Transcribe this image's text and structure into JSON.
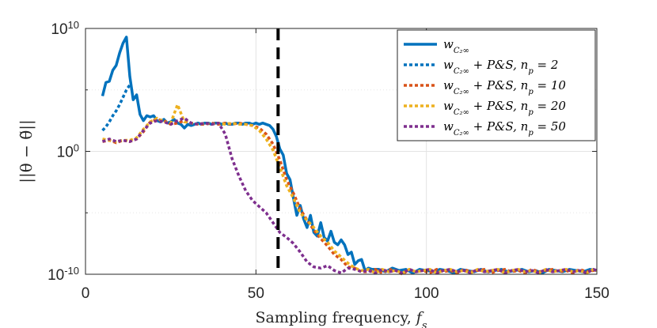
{
  "chart_data": {
    "type": "line",
    "title": "",
    "xlabel": "Sampling frequency, ",
    "xlabel_var": "f",
    "xlabel_sub": "s",
    "ylabel": "||θ − θ̃||",
    "xlim": [
      0,
      150
    ],
    "ylim_exponent": [
      -10,
      10
    ],
    "yscale": "log",
    "grid": true,
    "legend_position": "top-right",
    "x_ticks": [
      {
        "value": 0,
        "label": "0"
      },
      {
        "value": 50,
        "label": "50"
      },
      {
        "value": 100,
        "label": "100"
      },
      {
        "value": 150,
        "label": "150"
      }
    ],
    "y_ticks": [
      {
        "exp": 10,
        "base": "10",
        "sup": "10"
      },
      {
        "exp": 0,
        "base": "10",
        "sup": "0"
      },
      {
        "exp": -10,
        "base": "10",
        "sup": "-10"
      }
    ],
    "minor_y_grid_exp": [
      -5,
      5
    ],
    "vline": {
      "x": 56.5,
      "style": "dashed",
      "color": "#000000"
    },
    "series": [
      {
        "name": "w_{C_2^∞}",
        "legend_label": "w",
        "legend_sub": "C₂∞",
        "legend_suffix": "",
        "color": "#0072BD",
        "dash": "solid",
        "x": [
          5,
          6,
          7,
          8,
          9,
          10,
          11,
          12,
          13,
          14,
          15,
          16,
          17,
          18,
          19,
          20,
          21,
          22,
          23,
          24,
          25,
          26,
          27,
          28,
          29,
          30,
          31,
          32,
          33,
          34,
          35,
          36,
          37,
          38,
          39,
          40,
          41,
          42,
          43,
          44,
          45,
          46,
          47,
          48,
          49,
          50,
          51,
          52,
          53,
          54,
          55,
          56,
          57,
          58,
          59,
          60,
          61,
          62,
          63,
          64,
          65,
          66,
          67,
          68,
          69,
          70,
          71,
          72,
          73,
          74,
          75,
          76,
          77,
          78,
          79,
          80,
          81,
          82,
          83,
          84,
          86,
          88,
          90,
          92,
          94,
          96,
          98,
          100,
          102,
          104,
          106,
          108,
          110,
          112,
          114,
          116,
          118,
          120,
          122,
          124,
          126,
          128,
          130,
          132,
          134,
          136,
          138,
          140,
          142,
          144,
          146,
          148,
          150
        ],
        "y": [
          4.5,
          5.6,
          5.7,
          6.6,
          7.0,
          8.0,
          8.8,
          9.3,
          6.1,
          4.2,
          4.6,
          3.0,
          2.5,
          2.9,
          2.8,
          2.9,
          2.5,
          2.4,
          2.6,
          2.3,
          2.4,
          2.6,
          2.3,
          2.2,
          1.9,
          2.2,
          2.1,
          2.2,
          2.3,
          2.2,
          2.3,
          2.3,
          2.2,
          2.3,
          2.3,
          2.2,
          2.3,
          2.2,
          2.2,
          2.3,
          2.3,
          2.2,
          2.3,
          2.3,
          2.2,
          2.3,
          2.2,
          2.3,
          2.2,
          2.1,
          1.8,
          1.2,
          0.2,
          -0.3,
          -1.8,
          -2.3,
          -3.8,
          -5.2,
          -4.4,
          -5.5,
          -6.2,
          -5.2,
          -6.6,
          -6.9,
          -5.8,
          -7.0,
          -7.3,
          -6.5,
          -7.4,
          -7.6,
          -7.2,
          -7.6,
          -8.4,
          -8.2,
          -9.2,
          -8.9,
          -8.8,
          -9.7,
          -9.5,
          -9.6,
          -9.6,
          -9.8,
          -9.5,
          -9.7,
          -9.6,
          -9.9,
          -9.6,
          -9.7,
          -9.8,
          -9.6,
          -9.7,
          -9.9,
          -9.6,
          -9.7,
          -9.8,
          -9.6,
          -9.8,
          -9.7,
          -9.6,
          -9.8,
          -9.7,
          -9.6,
          -9.8,
          -9.7,
          -9.9,
          -9.6,
          -9.7,
          -9.8,
          -9.6,
          -9.7,
          -9.8,
          -9.6,
          -9.7
        ]
      },
      {
        "name": "w_{C_2^∞} + P&S, n_p = 2",
        "legend_label": "w",
        "legend_sub": "C₂∞",
        "legend_suffix": " + P&S, n",
        "legend_suffix_sub": "p",
        "legend_value": " = 2",
        "color": "#0072BD",
        "dash": "dotted",
        "x": [
          5,
          6,
          7,
          8,
          9,
          10,
          11,
          12,
          13
        ],
        "y": [
          1.7,
          2.0,
          2.4,
          2.9,
          3.3,
          3.8,
          4.4,
          5.0,
          5.4
        ]
      },
      {
        "name": "w_{C_2^∞} + P&S, n_p = 10",
        "legend_label": "w",
        "legend_sub": "C₂∞",
        "legend_suffix": " + P&S, n",
        "legend_suffix_sub": "p",
        "legend_value": " = 10",
        "color": "#D95319",
        "dash": "dotted",
        "x": [
          5,
          7,
          9,
          11,
          13,
          15,
          17,
          19,
          21,
          23,
          25,
          27,
          29,
          31,
          33,
          35,
          37,
          39,
          41,
          43,
          45,
          47,
          49,
          51,
          53,
          55,
          57,
          59,
          61,
          63,
          65,
          67,
          69,
          71,
          73,
          75,
          77,
          79,
          81,
          83,
          85,
          87,
          89,
          91,
          93,
          95,
          97,
          99,
          101,
          103,
          105,
          107,
          109,
          111,
          113,
          115,
          117,
          119,
          121,
          123,
          125,
          127,
          129,
          131,
          133,
          135,
          137,
          139,
          141,
          143,
          145,
          147,
          149,
          150
        ],
        "y": [
          0.8,
          0.9,
          0.7,
          0.9,
          0.8,
          1.0,
          1.6,
          2.4,
          2.6,
          2.5,
          2.2,
          2.3,
          2.5,
          2.3,
          2.2,
          2.2,
          2.3,
          2.2,
          2.3,
          2.2,
          2.3,
          2.2,
          2.1,
          1.9,
          1.4,
          0.6,
          -0.7,
          -2.3,
          -3.4,
          -4.7,
          -5.6,
          -6.4,
          -7.1,
          -7.7,
          -8.4,
          -8.8,
          -9.4,
          -9.5,
          -9.8,
          -9.8,
          -9.6,
          -9.9,
          -9.6,
          -9.7,
          -10.0,
          -9.6,
          -9.8,
          -9.7,
          -9.9,
          -9.6,
          -9.8,
          -9.7,
          -9.9,
          -9.6,
          -9.8,
          -9.7,
          -9.6,
          -9.9,
          -9.7,
          -9.6,
          -9.8,
          -9.7,
          -9.9,
          -9.6,
          -9.8,
          -9.7,
          -9.6,
          -9.8,
          -9.7,
          -9.9,
          -9.6,
          -9.8,
          -9.7,
          -9.6
        ]
      },
      {
        "name": "w_{C_2^∞} + P&S, n_p = 20",
        "legend_label": "w",
        "legend_sub": "C₂∞",
        "legend_suffix": " + P&S, n",
        "legend_suffix_sub": "p",
        "legend_value": " = 20",
        "color": "#EDB120",
        "dash": "dotted",
        "x": [
          5,
          7,
          9,
          11,
          13,
          15,
          17,
          19,
          21,
          23,
          25,
          27,
          29,
          31,
          33,
          35,
          37,
          39,
          41,
          43,
          45,
          47,
          49,
          51,
          53,
          55,
          57,
          59,
          61,
          63,
          65,
          67,
          69,
          71,
          73,
          75,
          77,
          79,
          81,
          83,
          85,
          87,
          89,
          91,
          93,
          95,
          97,
          99,
          101,
          103,
          105,
          107,
          109,
          111,
          113,
          115,
          117,
          119,
          121,
          123,
          125,
          127,
          129,
          131,
          133,
          135,
          137,
          139,
          141,
          143,
          145,
          147,
          149,
          150
        ],
        "y": [
          1.0,
          0.9,
          0.8,
          0.9,
          0.9,
          1.1,
          1.8,
          2.4,
          2.7,
          2.4,
          2.3,
          3.8,
          2.4,
          2.3,
          2.2,
          2.3,
          2.2,
          2.3,
          2.2,
          2.3,
          2.2,
          2.2,
          2.1,
          1.7,
          1.0,
          0.1,
          -1.3,
          -2.8,
          -3.8,
          -5.0,
          -5.6,
          -6.2,
          -6.9,
          -7.4,
          -8.1,
          -8.6,
          -9.1,
          -9.5,
          -9.7,
          -9.6,
          -9.9,
          -9.6,
          -9.8,
          -9.7,
          -9.9,
          -9.6,
          -9.8,
          -9.7,
          -9.6,
          -9.9,
          -9.7,
          -9.6,
          -9.8,
          -9.7,
          -9.9,
          -9.6,
          -9.8,
          -9.7,
          -9.6,
          -9.9,
          -9.7,
          -9.6,
          -9.8,
          -9.7,
          -9.9,
          -9.6,
          -9.8,
          -9.7,
          -9.6,
          -9.8,
          -9.7,
          -9.9,
          -9.6,
          -9.7
        ]
      },
      {
        "name": "w_{C_2^∞} + P&S, n_p = 50",
        "legend_label": "w",
        "legend_sub": "C₂∞",
        "legend_suffix": " + P&S, n",
        "legend_suffix_sub": "p",
        "legend_value": " = 50",
        "color": "#7E2F8E",
        "dash": "dotted",
        "x": [
          5,
          7,
          9,
          11,
          13,
          15,
          17,
          19,
          21,
          23,
          25,
          27,
          29,
          31,
          33,
          35,
          37,
          39,
          41,
          43,
          45,
          47,
          49,
          51,
          53,
          55,
          57,
          59,
          61,
          63,
          65,
          67,
          69,
          71,
          73,
          75,
          77,
          79,
          81,
          83,
          85,
          87,
          89,
          91,
          93,
          95,
          97,
          99,
          101,
          103,
          105,
          107,
          109,
          111,
          113,
          115,
          117,
          119,
          121,
          123,
          125,
          127,
          129,
          131,
          133,
          135,
          137,
          139,
          141,
          143,
          145,
          147,
          149,
          150
        ],
        "y": [
          0.8,
          1.0,
          0.8,
          0.9,
          0.8,
          1.0,
          1.7,
          2.3,
          2.5,
          2.4,
          2.2,
          2.5,
          2.7,
          2.3,
          2.2,
          2.3,
          2.2,
          2.3,
          1.4,
          -0.6,
          -2.0,
          -3.2,
          -4.0,
          -4.5,
          -5.0,
          -5.8,
          -6.6,
          -7.0,
          -7.5,
          -8.2,
          -9.0,
          -9.4,
          -9.5,
          -9.3,
          -9.7,
          -9.9,
          -9.5,
          -9.6,
          -9.8,
          -9.7,
          -9.9,
          -9.6,
          -9.8,
          -9.7,
          -9.9,
          -9.6,
          -9.8,
          -9.7,
          -9.6,
          -9.9,
          -9.7,
          -9.6,
          -9.8,
          -9.7,
          -9.9,
          -9.6,
          -9.8,
          -9.7,
          -9.6,
          -9.9,
          -9.7,
          -9.6,
          -9.8,
          -9.7,
          -9.9,
          -9.6,
          -9.8,
          -9.7,
          -9.6,
          -9.8,
          -9.7,
          -9.9,
          -9.6,
          -9.7
        ]
      }
    ]
  }
}
